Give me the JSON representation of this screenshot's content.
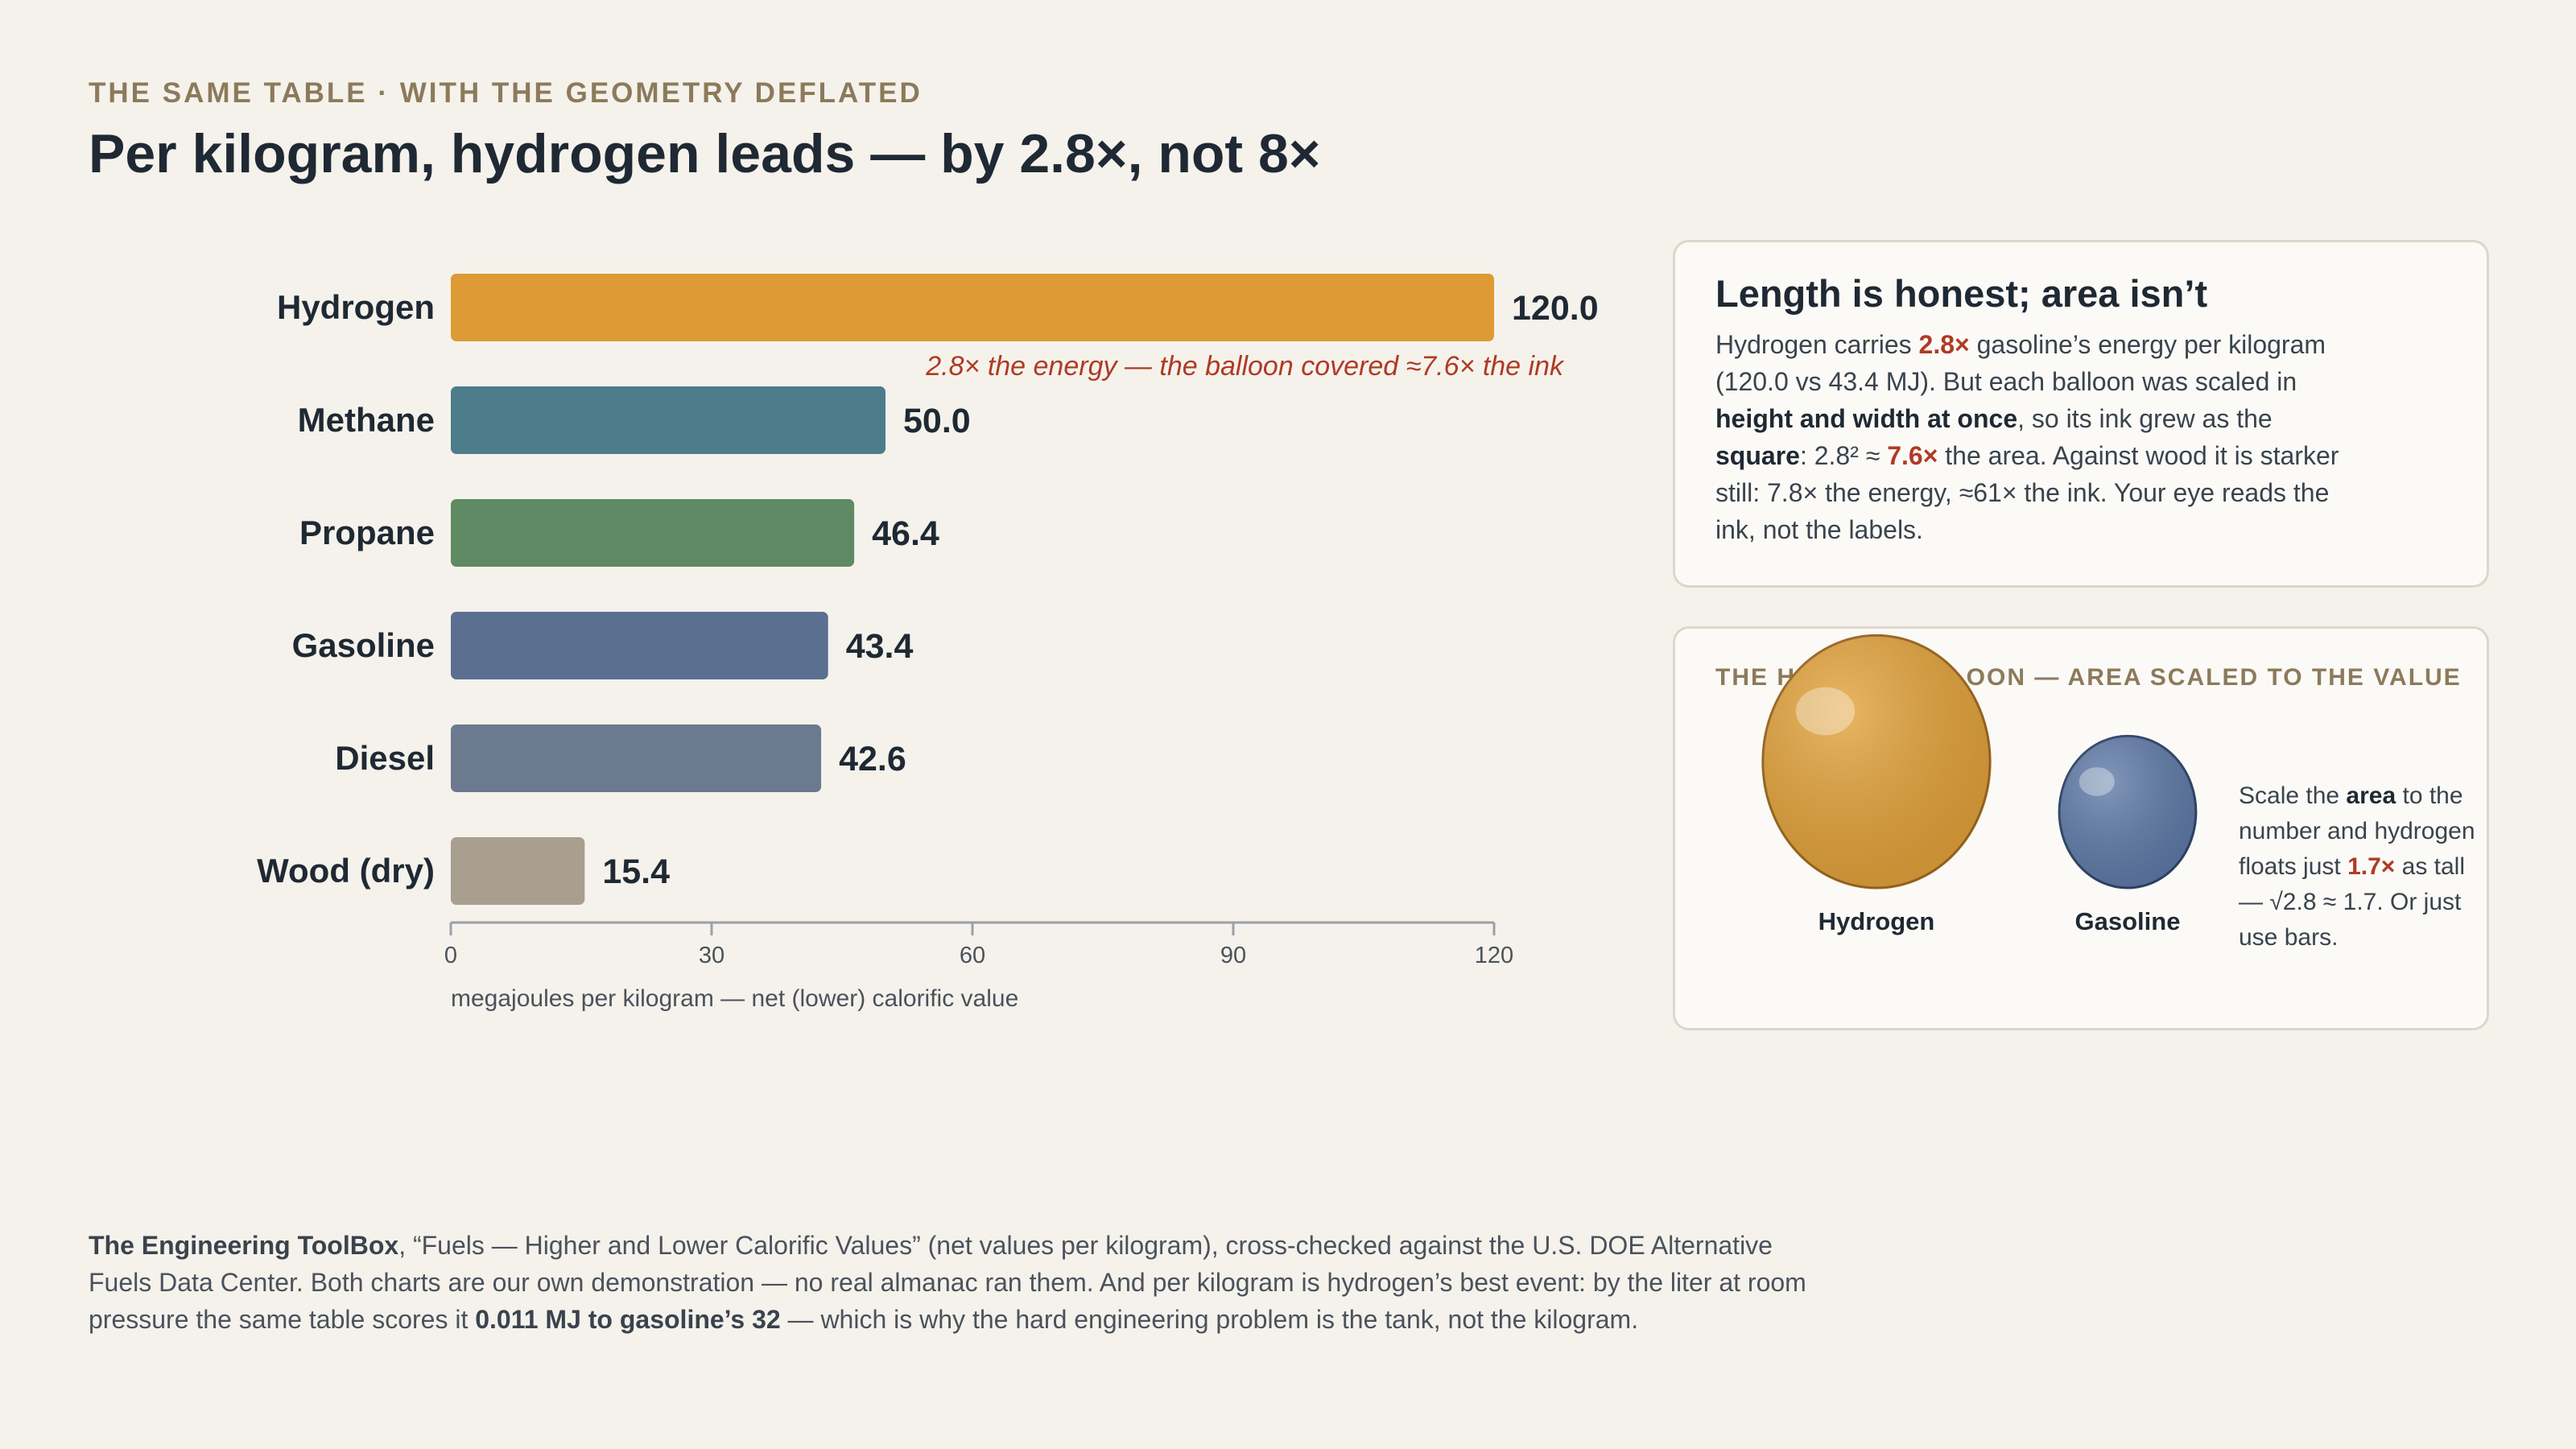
{
  "header": {
    "kicker": "THE SAME TABLE · WITH THE GEOMETRY DEFLATED",
    "title": "Per kilogram, hydrogen leads — by 2.8×, not 8×"
  },
  "chart_data": {
    "type": "bar",
    "orientation": "horizontal",
    "categories": [
      "Hydrogen",
      "Methane",
      "Propane",
      "Gasoline",
      "Diesel",
      "Wood (dry)"
    ],
    "values": [
      120.0,
      50.0,
      46.4,
      43.4,
      42.6,
      15.4
    ],
    "value_labels": [
      "120.0",
      "50.0",
      "46.4",
      "43.4",
      "42.6",
      "15.4"
    ],
    "colors": [
      "#dd9a35",
      "#4d7d8b",
      "#5f8a63",
      "#5b6f91",
      "#6b7a8f",
      "#a89f8e"
    ],
    "xlim": [
      0,
      120
    ],
    "xticks": [
      0,
      30,
      60,
      90,
      120
    ],
    "xlabel": "megajoules per kilogram — net (lower) calorific value",
    "annotation": "2.8× the energy — the balloon covered ≈7.6× the ink",
    "grid": false
  },
  "card1": {
    "title": "Length is honest; area isn’t",
    "p1": "Hydrogen carries ",
    "h1": "2.8×",
    "p2": " gasoline’s energy per kilogram (120.0 vs 43.4 MJ). But each balloon was scaled in ",
    "b1": "height and width at once",
    "p3": ", so its ink grew as the ",
    "b2": "square",
    "p4": ": 2.8² ≈ ",
    "h2": "7.6×",
    "p5": " the area. Against wood it is starker still: 7.8× the energy, ≈61× the ink. Your eye reads the ink, not the labels."
  },
  "card2": {
    "title": "THE HONEST BALLOON — AREA SCALED TO THE VALUE",
    "balloons": [
      {
        "label": "Hydrogen",
        "value": 120.0,
        "color": "#e3a23a",
        "stroke": "#9a6620"
      },
      {
        "label": "Gasoline",
        "value": 43.4,
        "color": "#5f7aa8",
        "stroke": "#2f4468"
      }
    ],
    "s1": "Scale the ",
    "b1": "area",
    "s2": " to the number and hydrogen floats just ",
    "h1": "1.7×",
    "s3": " as tall — √2.8 ≈ 1.7. Or just use bars."
  },
  "source": {
    "b1": "The Engineering ToolBox",
    "t1": ", “Fuels — Higher and Lower Calorific Values” (net values per kilogram), cross-checked against the U.S. DOE Alternative Fuels Data Center. Both charts are our own demonstration — no real almanac ran them. And per kilogram is hydrogen’s best event: by the liter at room pressure the same table scores it ",
    "b2": "0.011 MJ to gasoline’s 32",
    "t2": " — which is why the hard engineering problem is the tank, not the kilogram."
  }
}
